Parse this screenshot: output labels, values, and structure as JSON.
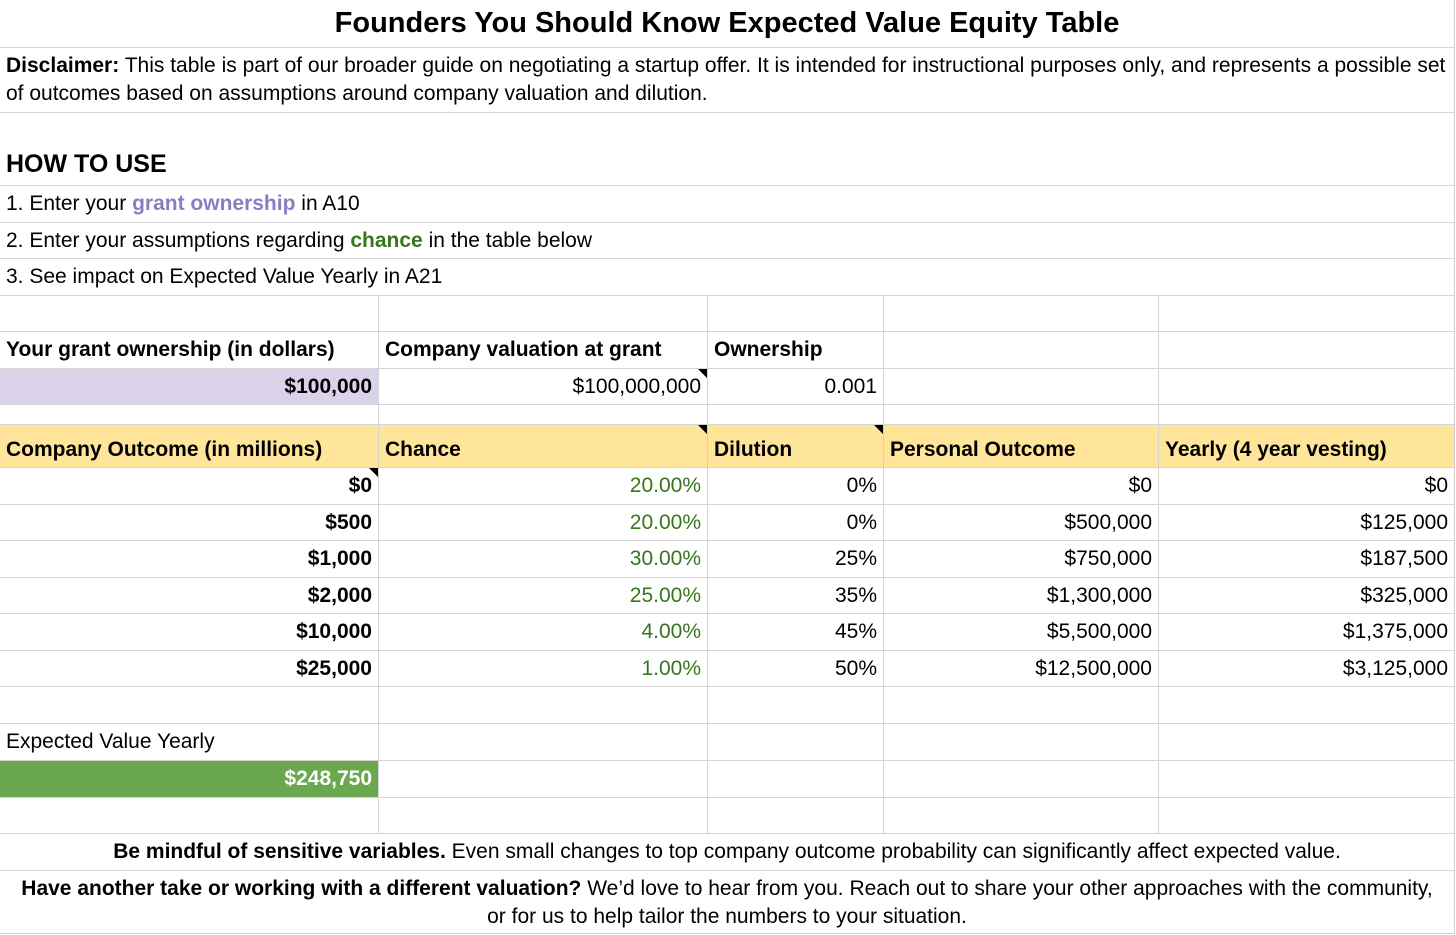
{
  "title": "Founders You Should Know Expected Value Equity Table",
  "disclaimer": {
    "label": "Disclaimer:",
    "text": " This table is part of our broader guide on negotiating a startup offer. It is intended for instructional purposes only, and represents a possible set of outcomes based on assumptions around company valuation and dilution."
  },
  "how_to_use": {
    "heading": "HOW TO USE",
    "step1": {
      "pre": "1. Enter your ",
      "highlight": "grant ownership",
      "post": " in A10"
    },
    "step2": {
      "pre": "2. Enter your assumptions regarding ",
      "highlight": "chance",
      "post": " in the table below"
    },
    "step3": "3. See impact on Expected Value Yearly in A21"
  },
  "inputs": {
    "headers": [
      "Your grant ownership (in dollars)",
      "Company valuation at grant",
      "Ownership"
    ],
    "grant": "$100,000",
    "valuation": "$100,000,000",
    "ownership": "0.001"
  },
  "table": {
    "headers": [
      "Company Outcome (in millions)",
      "Chance",
      "Dilution",
      "Personal Outcome",
      "Yearly (4 year vesting)"
    ],
    "rows": [
      [
        "$0",
        "20.00%",
        "0%",
        "$0",
        "$0"
      ],
      [
        "$500",
        "20.00%",
        "0%",
        "$500,000",
        "$125,000"
      ],
      [
        "$1,000",
        "30.00%",
        "25%",
        "$750,000",
        "$187,500"
      ],
      [
        "$2,000",
        "25.00%",
        "35%",
        "$1,300,000",
        "$325,000"
      ],
      [
        "$10,000",
        "4.00%",
        "45%",
        "$5,500,000",
        "$1,375,000"
      ],
      [
        "$25,000",
        "1.00%",
        "50%",
        "$12,500,000",
        "$3,125,000"
      ]
    ]
  },
  "expected": {
    "label": "Expected Value Yearly",
    "value": "$248,750"
  },
  "notes": {
    "note1_bold": "Be mindful of sensitive variables.",
    "note1_text": " Even small changes to top company outcome probability can significantly affect expected value.",
    "note2_bold": "Have another take or working with a different valuation?",
    "note2_text": " We’d love to hear from you. Reach out to share your other approaches with the community, or for us to help tailor the numbers to your situation."
  },
  "colors": {
    "header_fill": "#ffe599",
    "grant_fill": "#d9d2e9",
    "expected_fill": "#6aa84f",
    "chance_text": "#38761d",
    "grant_text": "#8e7cc3"
  }
}
